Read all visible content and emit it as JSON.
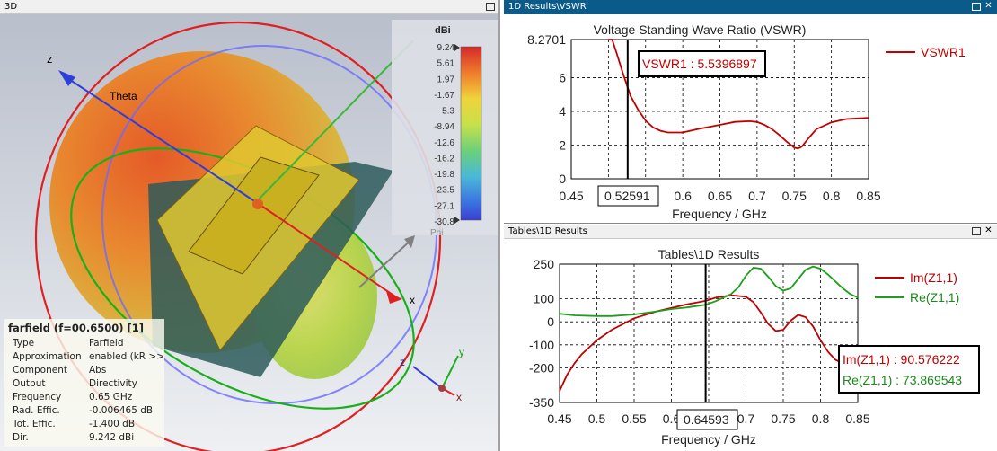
{
  "panel3d": {
    "title": "3D",
    "colorbar": {
      "unit": "dBi",
      "ticks": [
        "9.24",
        "5.61",
        "1.97",
        "-1.67",
        "-5.3",
        "-8.94",
        "-12.6",
        "-16.2",
        "-19.8",
        "-23.5",
        "-27.1",
        "-30.8"
      ],
      "phi_label": "Phi"
    },
    "axis_labels": {
      "z": "z",
      "theta": "Theta",
      "x": "x",
      "small_z": "z",
      "small_y": "y",
      "small_x": "x"
    },
    "farfield": {
      "title": "farfield (f=00.6500) [1]",
      "rows": [
        {
          "key": "Type",
          "value": "Farfield"
        },
        {
          "key": "Approximation",
          "value": "enabled (kR >>"
        },
        {
          "key": "Component",
          "value": "Abs"
        },
        {
          "key": "Output",
          "value": "Directivity"
        },
        {
          "key": "Frequency",
          "value": "0.65 GHz"
        },
        {
          "key": "Rad. Effic.",
          "value": "-0.006465 dB"
        },
        {
          "key": "Tot. Effic.",
          "value": "-1.400 dB"
        },
        {
          "key": "Dir.",
          "value": "9.242 dBi"
        }
      ]
    }
  },
  "panel_vswr": {
    "title": "1D Results\\VSWR",
    "chart_title": "Voltage Standing Wave Ratio (VSWR)",
    "xlabel": "Frequency / GHz",
    "marker_label": "VSWR1 : 5.5396897",
    "marker_x_label": "0.52591",
    "legend": "VSWR1"
  },
  "panel_tables": {
    "title": "Tables\\1D Results",
    "chart_title": "Tables\\1D Results",
    "xlabel": "Frequency / GHz",
    "marker_label_im": "Im(Z1,1) : 90.576222",
    "marker_label_re": "Re(Z1,1) : 73.869543",
    "marker_x_label": "0.64593",
    "legend_im": "Im(Z1,1)",
    "legend_re": "Re(Z1,1)"
  },
  "colors": {
    "red": "#c00000",
    "green": "#1aa01a",
    "titlebar_active": "#0b5b8a"
  },
  "chart_data": [
    {
      "type": "line",
      "title": "Voltage Standing Wave Ratio (VSWR)",
      "xlabel": "Frequency / GHz",
      "ylabel": "",
      "xlim": [
        0.45,
        0.85
      ],
      "ylim": [
        0,
        8.2701
      ],
      "x_ticks": [
        "0.45",
        "0.5",
        "0.55",
        "0.6",
        "0.65",
        "0.7",
        "0.75",
        "0.8",
        "0.85"
      ],
      "y_ticks": [
        "0",
        "2",
        "4",
        "6",
        "8.2701"
      ],
      "grid": true,
      "legend_position": "right",
      "series": [
        {
          "name": "VSWR1",
          "color": "#c00000",
          "x": [
            0.5,
            0.505,
            0.51,
            0.515,
            0.52,
            0.525,
            0.53,
            0.54,
            0.55,
            0.56,
            0.57,
            0.58,
            0.6,
            0.62,
            0.65,
            0.67,
            0.69,
            0.7,
            0.71,
            0.72,
            0.73,
            0.74,
            0.75,
            0.755,
            0.76,
            0.77,
            0.78,
            0.8,
            0.82,
            0.85
          ],
          "y": [
            9.0,
            8.3,
            7.6,
            6.9,
            6.2,
            5.54,
            4.9,
            4.1,
            3.45,
            3.05,
            2.85,
            2.75,
            2.75,
            2.95,
            3.2,
            3.38,
            3.42,
            3.37,
            3.2,
            2.95,
            2.6,
            2.2,
            1.85,
            1.8,
            1.9,
            2.45,
            2.95,
            3.35,
            3.55,
            3.62
          ]
        }
      ]
    },
    {
      "type": "line",
      "title": "Tables\\1D Results",
      "xlabel": "Frequency / GHz",
      "ylabel": "",
      "xlim": [
        0.45,
        0.85
      ],
      "ylim": [
        -350,
        250
      ],
      "x_ticks": [
        "0.45",
        "0.5",
        "0.55",
        "0.6",
        "0.65",
        "0.7",
        "0.75",
        "0.8",
        "0.85"
      ],
      "y_ticks": [
        "-350",
        "-200",
        "-100",
        "0",
        "100",
        "250"
      ],
      "grid": true,
      "legend_position": "right",
      "series": [
        {
          "name": "Im(Z1,1)",
          "color": "#c00000",
          "x": [
            0.45,
            0.46,
            0.47,
            0.48,
            0.5,
            0.52,
            0.55,
            0.58,
            0.6,
            0.62,
            0.646,
            0.66,
            0.68,
            0.7,
            0.71,
            0.72,
            0.73,
            0.74,
            0.75,
            0.76,
            0.77,
            0.78,
            0.79,
            0.8,
            0.81,
            0.82,
            0.83,
            0.85
          ],
          "y": [
            -300,
            -230,
            -180,
            -140,
            -80,
            -35,
            15,
            45,
            60,
            75,
            90.58,
            105,
            115,
            108,
            85,
            40,
            -10,
            -40,
            -35,
            5,
            30,
            20,
            -20,
            -80,
            -130,
            -165,
            -180,
            -180
          ]
        },
        {
          "name": "Re(Z1,1)",
          "color": "#1aa01a",
          "x": [
            0.45,
            0.47,
            0.5,
            0.52,
            0.55,
            0.58,
            0.6,
            0.62,
            0.646,
            0.66,
            0.68,
            0.69,
            0.7,
            0.71,
            0.72,
            0.73,
            0.74,
            0.75,
            0.76,
            0.77,
            0.78,
            0.79,
            0.8,
            0.81,
            0.82,
            0.83,
            0.84,
            0.85
          ],
          "y": [
            35,
            28,
            25,
            25,
            32,
            45,
            55,
            62,
            73.87,
            90,
            120,
            150,
            200,
            235,
            230,
            195,
            155,
            135,
            145,
            185,
            225,
            240,
            230,
            205,
            175,
            145,
            120,
            105
          ]
        }
      ]
    }
  ]
}
